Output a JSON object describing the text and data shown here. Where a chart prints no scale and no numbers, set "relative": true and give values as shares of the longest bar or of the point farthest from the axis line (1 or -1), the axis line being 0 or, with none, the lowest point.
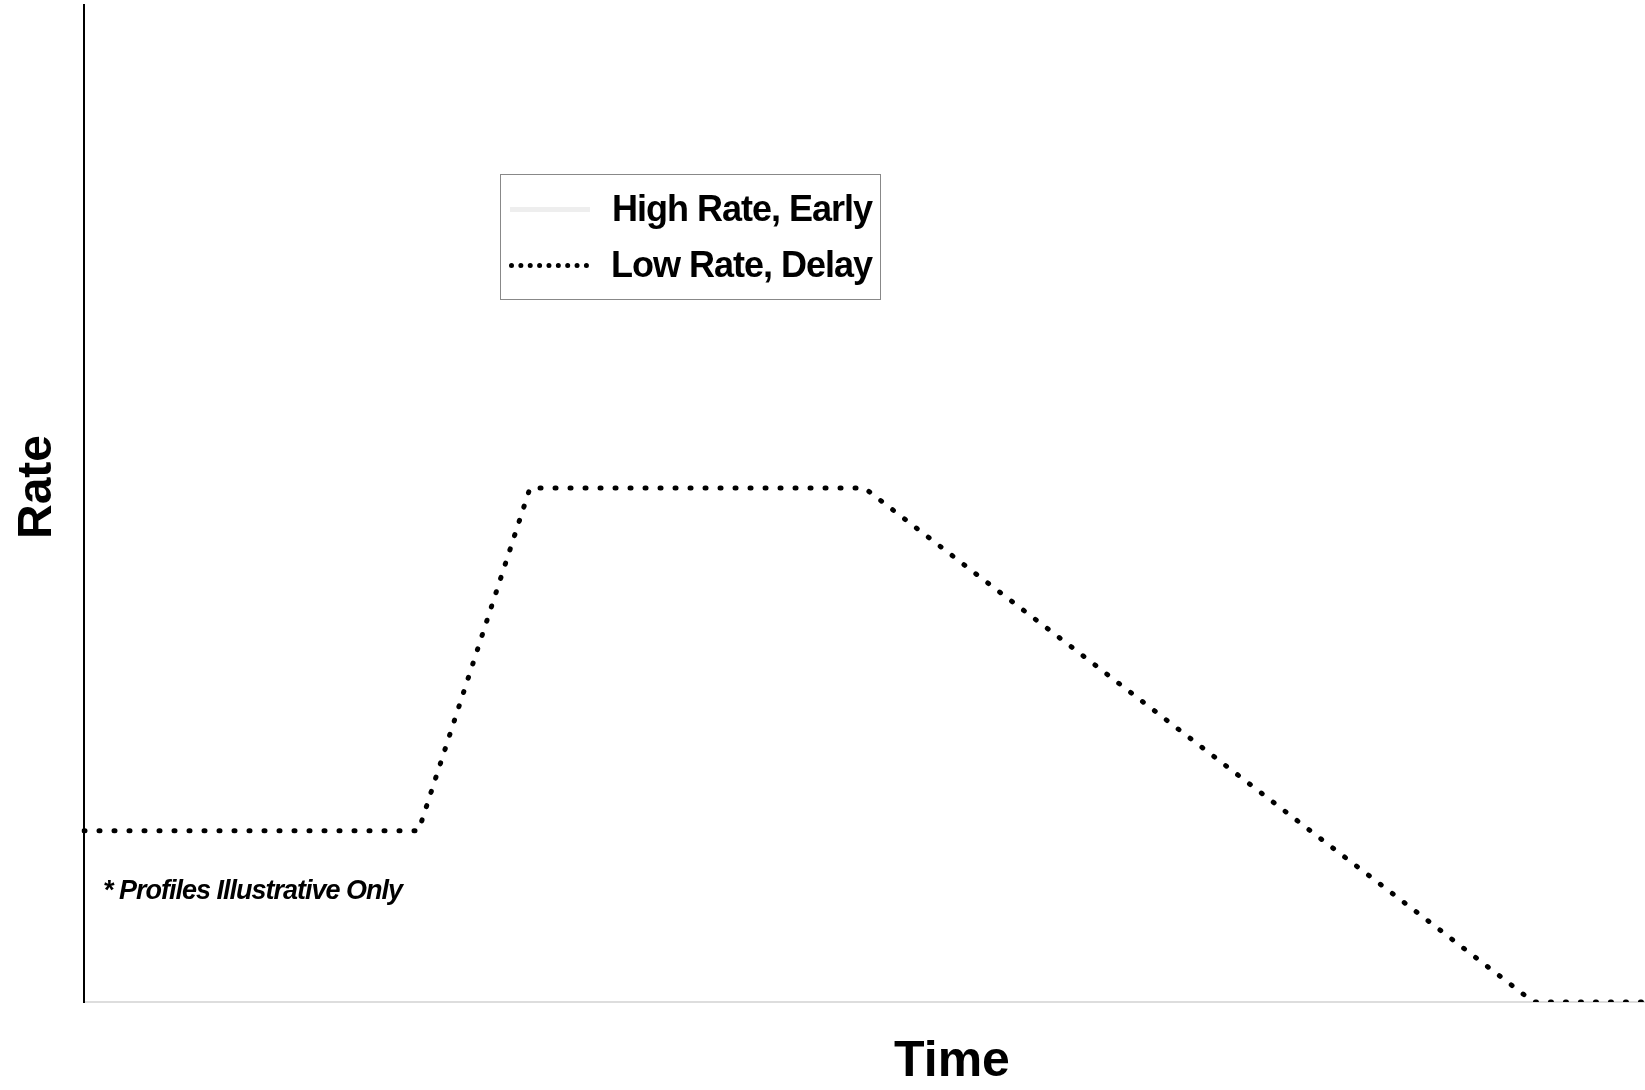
{
  "chart_data": {
    "type": "line",
    "relative": true,
    "xlabel": "Time",
    "ylabel": "Rate",
    "annotations": [
      "* Profiles Illustrative Only"
    ],
    "legend": "top",
    "line_style": "dotted",
    "marker": "none",
    "grid": false,
    "categories": [
      null,
      null,
      null,
      null,
      null,
      null,
      null,
      null,
      null,
      null,
      null,
      null,
      null,
      null,
      null
    ],
    "series": [
      {
        "name": "High Rate, Early",
        "color": "#eeeeee",
        "values": [
          null,
          null,
          null,
          null,
          null,
          null,
          null,
          null,
          null,
          null,
          null,
          null,
          null,
          null,
          null
        ]
      },
      {
        "name": "Low Rate, Delay",
        "color": "#000000",
        "values": [
          0.333,
          0.333,
          0.333,
          0.333,
          1,
          1,
          1,
          1,
          0.833,
          0.667,
          0.5,
          0.333,
          0.167,
          0,
          0
        ]
      }
    ]
  }
}
